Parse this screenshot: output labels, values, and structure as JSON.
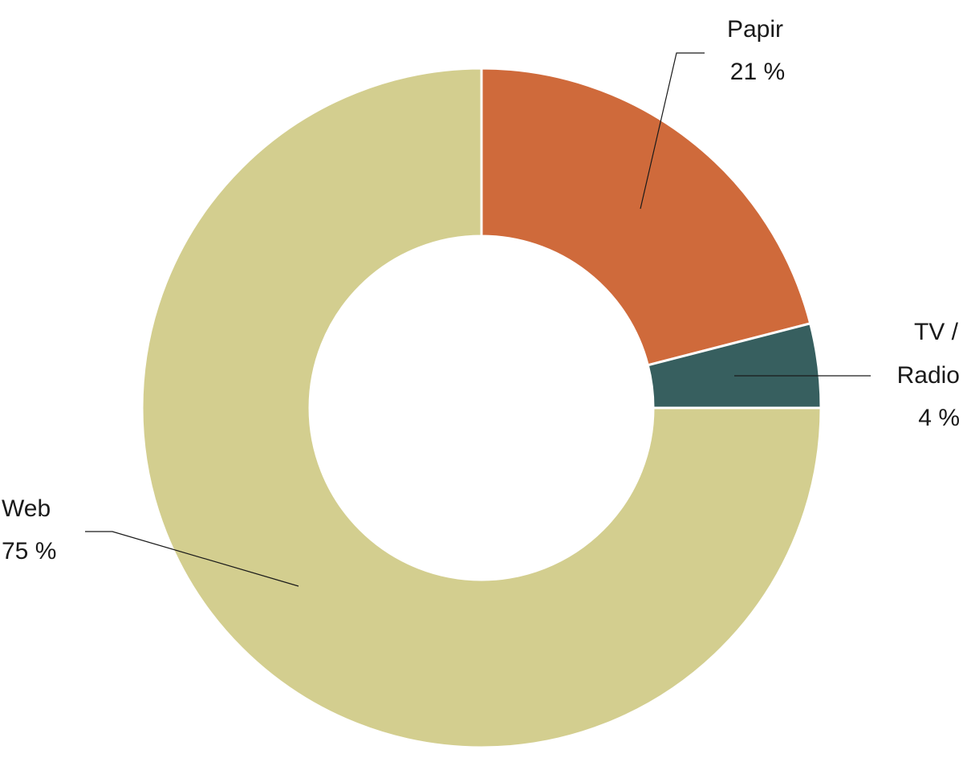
{
  "chart_data": {
    "type": "pie",
    "variant": "donut",
    "direction": "clockwise",
    "start_angle": "12 o'clock",
    "categories": [
      "Papir",
      "TV / Radio",
      "Web"
    ],
    "values": [
      21,
      4,
      75
    ],
    "unit": "%",
    "value_labels": [
      "21 %",
      "4 %",
      "75 %"
    ],
    "colors": [
      "#cf6a3b",
      "#375f5f",
      "#d3ce8f"
    ],
    "label_lines": [
      [
        "Papir",
        "21 %"
      ],
      [
        "TV /",
        "Radio",
        "4 %"
      ],
      [
        "Web",
        "75 %"
      ]
    ],
    "legend": "none"
  }
}
